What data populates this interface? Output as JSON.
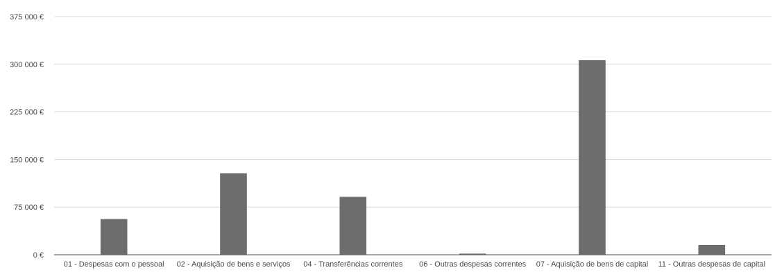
{
  "chart_data": {
    "type": "bar",
    "title": "",
    "xlabel": "",
    "ylabel": "",
    "categories": [
      "01 - Despesas com o pessoal",
      "02 - Aquisição de bens e serviços",
      "04 - Transferências correntes",
      "06 - Outras despesas correntes",
      "07 - Aquisição de bens de capital",
      "11 - Outras despesas de capital"
    ],
    "values": [
      56000,
      128000,
      91000,
      1500,
      306000,
      15000
    ],
    "ylim": [
      0,
      375000
    ],
    "y_ticks": [
      0,
      75000,
      150000,
      225000,
      300000,
      375000
    ],
    "y_tick_labels": [
      "0 €",
      "75 000 €",
      "150 000 €",
      "225 000 €",
      "300 000 €",
      "375 000 €"
    ],
    "grid": true,
    "legend": "none",
    "colors": {
      "bar": "#6d6d6d",
      "grid": "#d8d8d8",
      "axis": "#6f6f6f",
      "text": "#4a4a4a"
    }
  }
}
